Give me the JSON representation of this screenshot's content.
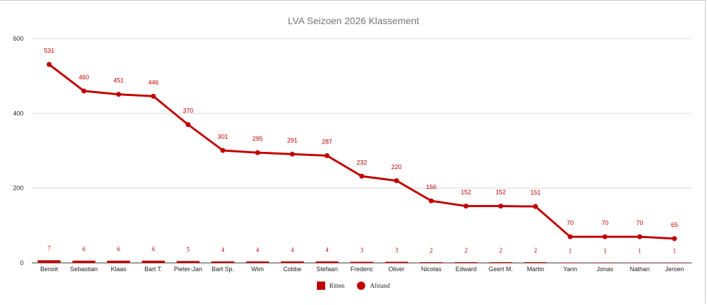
{
  "chart_data": {
    "type": "line",
    "title": "LVA Seizoen 2026 Klassement",
    "xlabel": "",
    "ylabel": "",
    "ylim": [
      0,
      600
    ],
    "yticks": [
      0,
      200,
      400,
      600
    ],
    "grid": true,
    "legend_position": "bottom",
    "categories": [
      "Benoit",
      "Sebastian",
      "Klaas",
      "Bart T.",
      "Pieter-Jan",
      "Bart Sp.",
      "Wim",
      "Cobbe",
      "Stefaan",
      "Frederic",
      "Oliver",
      "Nicolas",
      "Edward",
      "Geert M.",
      "Martin",
      "Yann",
      "Jonas",
      "Nathan",
      "Jeroen"
    ],
    "series": [
      {
        "name": "Ritten",
        "type": "bar",
        "color": "#c00000",
        "values": [
          7,
          6,
          6,
          6,
          5,
          4,
          4,
          4,
          4,
          3,
          3,
          2,
          2,
          2,
          2,
          1,
          1,
          1,
          1
        ]
      },
      {
        "name": "Afstand",
        "type": "line",
        "color": "#c00000",
        "values": [
          531,
          460,
          451,
          446,
          370,
          301,
          295,
          291,
          287,
          232,
          220,
          166,
          152,
          152,
          151,
          70,
          70,
          70,
          65
        ]
      }
    ]
  }
}
